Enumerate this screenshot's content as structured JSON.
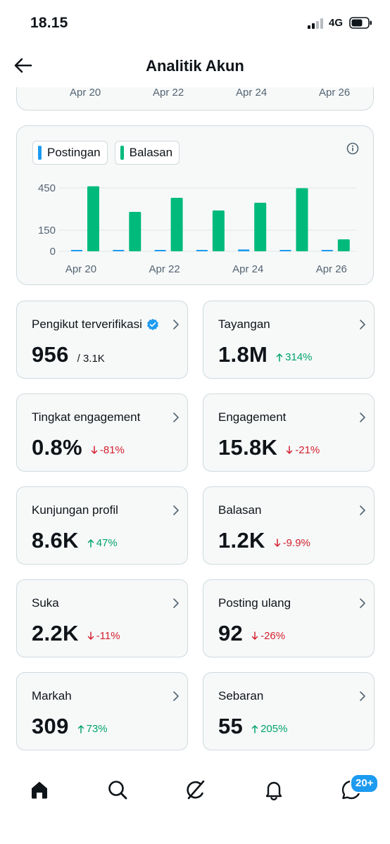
{
  "status_bar": {
    "time": "18.15",
    "network": "4G",
    "icons": [
      "signal-icon",
      "battery-icon"
    ]
  },
  "header": {
    "title": "Analitik Akun",
    "back_icon": "arrow-left-icon"
  },
  "top_chart": {
    "x_ticks": [
      "Apr 20",
      "Apr 22",
      "Apr 24",
      "Apr 26"
    ]
  },
  "chart_data": {
    "type": "bar",
    "categories": [
      "Apr 20",
      "Apr 21",
      "Apr 22",
      "Apr 23",
      "Apr 24",
      "Apr 25",
      "Apr 26"
    ],
    "x_tick_labels": [
      "Apr 20",
      "Apr 22",
      "Apr 24",
      "Apr 26"
    ],
    "y_ticks": [
      "450",
      "150",
      "0"
    ],
    "ylim": [
      0,
      470
    ],
    "grid": true,
    "legend_placement": "top-left",
    "series": [
      {
        "name": "Postingan",
        "color": "#1d9bf0",
        "values": [
          10,
          5,
          6,
          4,
          13,
          9,
          3
        ]
      },
      {
        "name": "Balasan",
        "color": "#00ba7c",
        "values": [
          462,
          280,
          380,
          290,
          345,
          448,
          85
        ]
      }
    ]
  },
  "metrics": [
    {
      "label": "Pengikut terverifikasi",
      "value": "956",
      "sub": "/ 3.1K",
      "verified": true
    },
    {
      "label": "Tayangan",
      "value": "1.8M",
      "change": "314%",
      "direction": "up"
    },
    {
      "label": "Tingkat engagement",
      "value": "0.8%",
      "change": "-81%",
      "direction": "down"
    },
    {
      "label": "Engagement",
      "value": "15.8K",
      "change": "-21%",
      "direction": "down"
    },
    {
      "label": "Kunjungan profil",
      "value": "8.6K",
      "change": "47%",
      "direction": "up"
    },
    {
      "label": "Balasan",
      "value": "1.2K",
      "change": "-9.9%",
      "direction": "down"
    },
    {
      "label": "Suka",
      "value": "2.2K",
      "change": "-11%",
      "direction": "down"
    },
    {
      "label": "Posting ulang",
      "value": "92",
      "change": "-26%",
      "direction": "down"
    },
    {
      "label": "Markah",
      "value": "309",
      "change": "73%",
      "direction": "up"
    },
    {
      "label": "Sebaran",
      "value": "55",
      "change": "205%",
      "direction": "up"
    }
  ],
  "colors": {
    "accent": "#1d9bf0",
    "green": "#00ba7c",
    "positive": "#00a36c",
    "negative": "#d4202e"
  },
  "bottom_nav": {
    "items": [
      "home-icon",
      "search-icon",
      "grok-icon",
      "notifications-icon",
      "messages-icon"
    ],
    "badge": "20+"
  }
}
